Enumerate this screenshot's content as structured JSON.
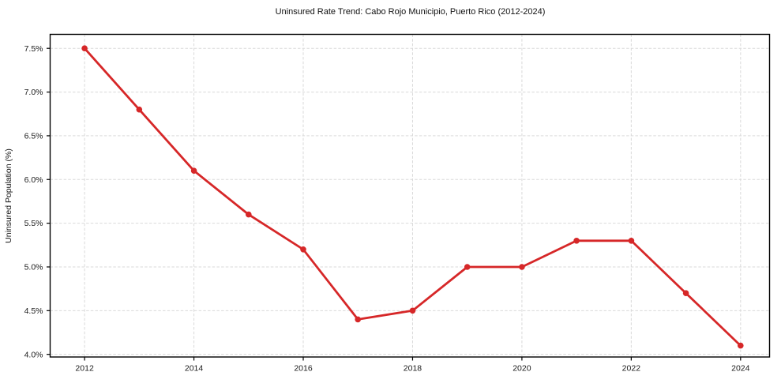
{
  "chart_data": {
    "type": "line",
    "title": "Uninsured Rate Trend: Cabo Rojo Municipio, Puerto Rico (2012-2024)",
    "xlabel": "",
    "ylabel": "Uninsured Population (%)",
    "x": [
      2012,
      2013,
      2014,
      2015,
      2016,
      2017,
      2018,
      2019,
      2020,
      2021,
      2022,
      2023,
      2024
    ],
    "series": [
      {
        "name": "Uninsured Population (%)",
        "values": [
          7.5,
          6.8,
          6.1,
          5.6,
          5.2,
          4.4,
          4.5,
          5.0,
          5.0,
          5.3,
          5.3,
          4.7,
          4.1
        ]
      }
    ],
    "xticks": [
      2012,
      2014,
      2016,
      2018,
      2020,
      2022,
      2024
    ],
    "yticks": [
      4.0,
      4.5,
      5.0,
      5.5,
      6.0,
      6.5,
      7.0,
      7.5
    ],
    "ytick_suffix": "%",
    "ytick_decimals": 1,
    "xlim": [
      2011.37,
      2024.53
    ],
    "ylim": [
      3.97,
      7.66
    ],
    "grid": true,
    "legend": "none",
    "colors": {
      "line": "#d62728",
      "marker": "#d62728",
      "grid": "#d9d9d9",
      "spine": "#000000",
      "tick_label": "#1a1a1a",
      "background": "#ffffff"
    }
  }
}
